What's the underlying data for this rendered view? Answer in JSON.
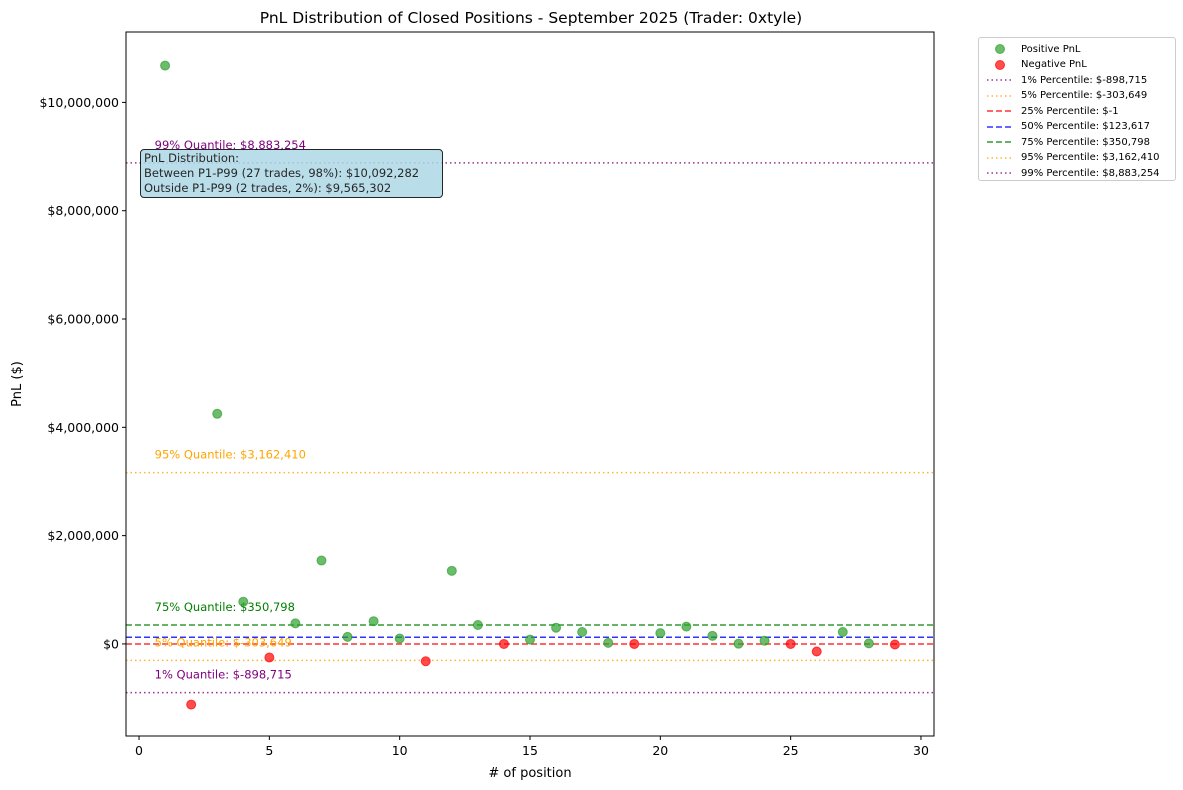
{
  "chart_data": {
    "type": "scatter",
    "title": "PnL Distribution of Closed Positions - September 2025 (Trader: 0xtyle)",
    "xlabel": "# of position",
    "ylabel": "PnL ($)",
    "xlim": [
      -0.5,
      30.5
    ],
    "ylim": [
      -1700000,
      11300000
    ],
    "xticks": [
      0,
      5,
      10,
      15,
      20,
      25,
      30
    ],
    "yticks": [
      0,
      2000000,
      4000000,
      6000000,
      8000000,
      10000000
    ],
    "ytick_labels": [
      "$0",
      "$2,000,000",
      "$4,000,000",
      "$6,000,000",
      "$8,000,000",
      "$10,000,000"
    ],
    "grid": false,
    "legend_position": "outside-top-right",
    "series": [
      {
        "name": "Positive PnL",
        "color": "#2ca02c",
        "points": [
          {
            "x": 1,
            "y": 10680000
          },
          {
            "x": 3,
            "y": 4250000
          },
          {
            "x": 4,
            "y": 780000
          },
          {
            "x": 6,
            "y": 380000
          },
          {
            "x": 7,
            "y": 1540000
          },
          {
            "x": 8,
            "y": 130000
          },
          {
            "x": 9,
            "y": 420000
          },
          {
            "x": 10,
            "y": 100000
          },
          {
            "x": 12,
            "y": 1350000
          },
          {
            "x": 13,
            "y": 350000
          },
          {
            "x": 15,
            "y": 80000
          },
          {
            "x": 16,
            "y": 300000
          },
          {
            "x": 17,
            "y": 220000
          },
          {
            "x": 18,
            "y": 20000
          },
          {
            "x": 20,
            "y": 200000
          },
          {
            "x": 21,
            "y": 320000
          },
          {
            "x": 22,
            "y": 150000
          },
          {
            "x": 23,
            "y": 5000
          },
          {
            "x": 24,
            "y": 60000
          },
          {
            "x": 27,
            "y": 220000
          },
          {
            "x": 28,
            "y": 10000
          }
        ]
      },
      {
        "name": "Negative PnL",
        "color": "#ff0000",
        "points": [
          {
            "x": 2,
            "y": -1120000
          },
          {
            "x": 5,
            "y": -250000
          },
          {
            "x": 11,
            "y": -320000
          },
          {
            "x": 14,
            "y": -1
          },
          {
            "x": 19,
            "y": -1
          },
          {
            "x": 25,
            "y": -1
          },
          {
            "x": 26,
            "y": -140000
          },
          {
            "x": 29,
            "y": -10000
          }
        ]
      }
    ],
    "reference_lines": [
      {
        "legend": "1% Percentile: $-898,715",
        "value": -898715,
        "color": "#800080",
        "style": "dotted",
        "label": "1% Quantile: $-898,715"
      },
      {
        "legend": "5% Percentile: $-303,649",
        "value": -303649,
        "color": "#ffa500",
        "style": "dotted",
        "label": "5% Quantile: $-303,649"
      },
      {
        "legend": "25% Percentile: $-1",
        "value": -1,
        "color": "#ff0000",
        "style": "dashed",
        "label": ""
      },
      {
        "legend": "50% Percentile: $123,617",
        "value": 123617,
        "color": "#0000ff",
        "style": "dashed",
        "label": ""
      },
      {
        "legend": "75% Percentile: $350,798",
        "value": 350798,
        "color": "#008000",
        "style": "dashed",
        "label": "75% Quantile: $350,798"
      },
      {
        "legend": "95% Percentile: $3,162,410",
        "value": 3162410,
        "color": "#ffa500",
        "style": "dotted",
        "label": "95% Quantile: $3,162,410"
      },
      {
        "legend": "99% Percentile: $8,883,254",
        "value": 8883254,
        "color": "#800080",
        "style": "dotted",
        "label": "99% Quantile: $8,883,254"
      }
    ],
    "annotation_box": {
      "line1": "PnL Distribution:",
      "line2": "Between P1-P99 (27 trades, 98%): $10,092,282",
      "line3": "Outside P1-P99 (2 trades, 2%): $9,565,302",
      "color": "#add8e6"
    }
  }
}
